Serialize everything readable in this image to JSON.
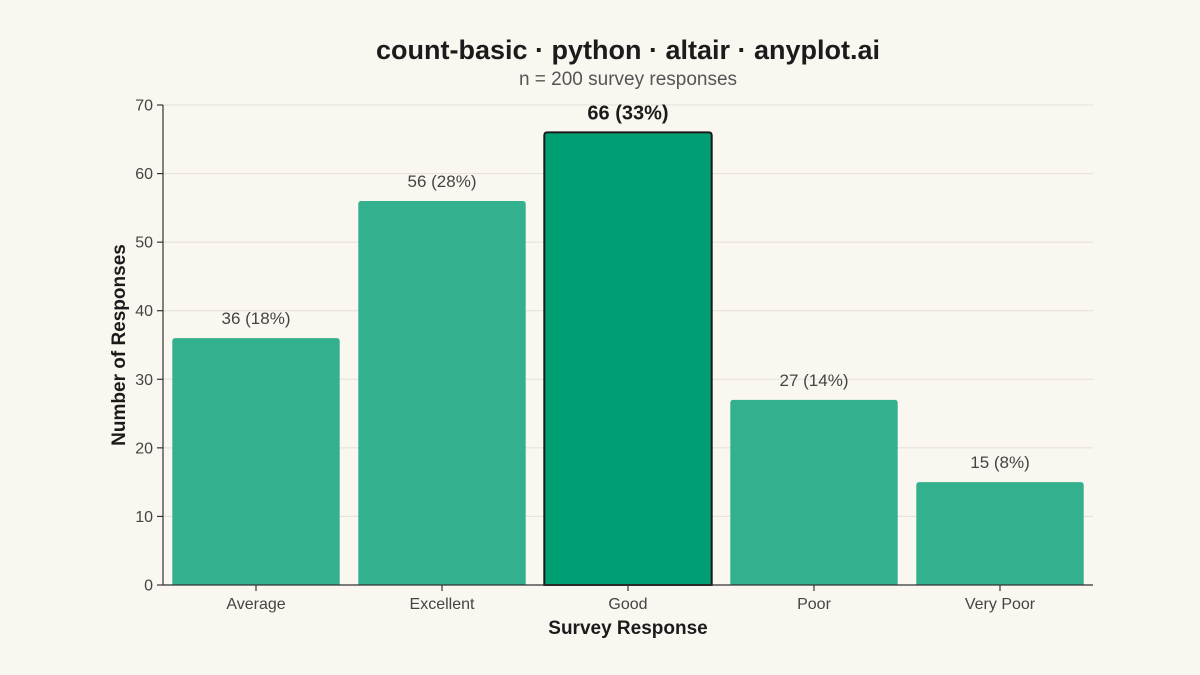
{
  "chart_data": {
    "type": "bar",
    "title": "count-basic · python · altair · anyplot.ai",
    "subtitle": "n = 200 survey responses",
    "xlabel": "Survey Response",
    "ylabel": "Number of Responses",
    "categories": [
      "Average",
      "Excellent",
      "Good",
      "Poor",
      "Very Poor"
    ],
    "values": [
      36,
      56,
      66,
      27,
      15
    ],
    "labels": [
      "36 (18%)",
      "56 (28%)",
      "66 (33%)",
      "27 (14%)",
      "15 (8%)"
    ],
    "highlight_index": 2,
    "ylim": [
      0,
      70
    ],
    "yticks": [
      0,
      10,
      20,
      30,
      40,
      50,
      60,
      70
    ],
    "grid": true,
    "legend": "none",
    "colors": {
      "bar": "#33B08D",
      "bar_highlight": "#009E73",
      "highlight_outline": "#1A1A1A",
      "background": "#FAF7F1"
    }
  }
}
